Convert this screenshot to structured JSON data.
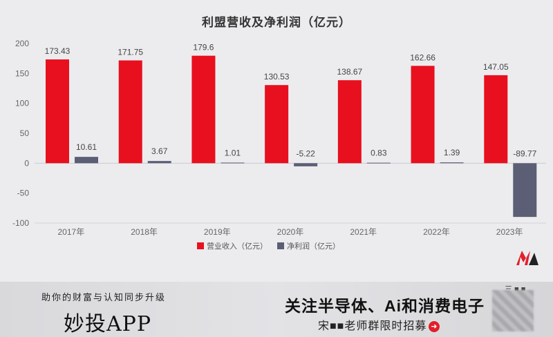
{
  "chart_data": {
    "type": "bar",
    "title": "利盟营收及净利润（亿元）",
    "categories": [
      "2017年",
      "2018年",
      "2019年",
      "2020年",
      "2021年",
      "2022年",
      "2023年"
    ],
    "series": [
      {
        "name": "营业收入（亿元）",
        "color": "#e8101e",
        "values": [
          173.43,
          171.75,
          179.6,
          130.53,
          138.67,
          162.66,
          147.05
        ],
        "labels": [
          "173.43",
          "171.75",
          "179.6",
          "130.53",
          "138.67",
          "162.66",
          "147.05"
        ]
      },
      {
        "name": "净利润（亿元）",
        "color": "#5b5e74",
        "values": [
          10.61,
          3.67,
          1.01,
          -5.22,
          0.83,
          1.39,
          -89.77
        ],
        "labels": [
          "10.61",
          "3.67",
          "1.01",
          "-5.22",
          "0.83",
          "1.39",
          "-89.77"
        ]
      }
    ],
    "yticks": [
      200,
      150,
      100,
      50,
      0,
      -50,
      -100
    ],
    "ylim": [
      -100,
      200
    ],
    "grid": false,
    "legend": "bottom"
  },
  "footer": {
    "slogan": "助你的财富与认知同步升级",
    "app_name": "妙投APP",
    "headline": "关注半导体、Ai和消费电子",
    "sub": "宋■■老师群限时招募",
    "corner": "三 ■ ■"
  },
  "logo": {
    "name": "m-logo-icon",
    "colors": [
      "#e0202a",
      "#222222"
    ]
  }
}
